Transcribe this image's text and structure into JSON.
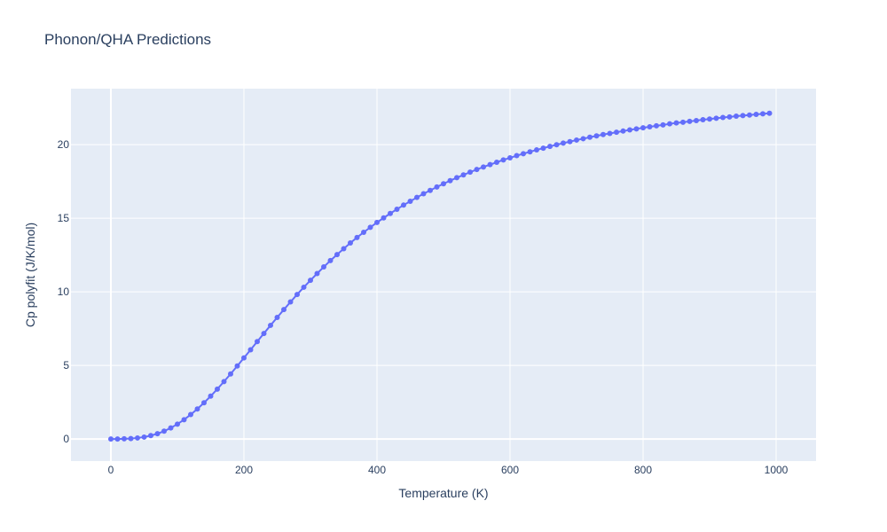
{
  "chart_data": {
    "type": "scatter",
    "title": "Phonon/QHA Predictions",
    "xlabel": "Temperature (K)",
    "ylabel": "Cp polyfit (J/K/mol)",
    "xlim": [
      -60,
      1060
    ],
    "ylim": [
      -1.5,
      23.8
    ],
    "x_ticks": [
      0,
      200,
      400,
      600,
      800,
      1000
    ],
    "y_ticks": [
      0,
      5,
      10,
      15,
      20
    ],
    "grid": true,
    "legend": "none",
    "colors": {
      "plot_bg": "#e5ecf6",
      "grid": "#ffffff",
      "series": "#636efa",
      "text": "#2a3f5f"
    },
    "series": [
      {
        "mode": "lines+markers",
        "x": [
          0,
          10,
          20,
          30,
          40,
          50,
          60,
          70,
          80,
          90,
          100,
          110,
          120,
          130,
          140,
          150,
          160,
          170,
          180,
          190,
          200,
          210,
          220,
          230,
          240,
          250,
          260,
          270,
          280,
          290,
          300,
          310,
          320,
          330,
          340,
          350,
          360,
          370,
          380,
          390,
          400,
          410,
          420,
          430,
          440,
          450,
          460,
          470,
          480,
          490,
          500,
          510,
          520,
          530,
          540,
          550,
          560,
          570,
          580,
          590,
          600,
          610,
          620,
          630,
          640,
          650,
          660,
          670,
          680,
          690,
          700,
          710,
          720,
          730,
          740,
          750,
          760,
          770,
          780,
          790,
          800,
          810,
          820,
          830,
          840,
          850,
          860,
          870,
          880,
          890,
          900,
          910,
          920,
          930,
          940,
          950,
          960,
          970,
          980,
          990
        ],
        "y": [
          0.0,
          0.0,
          0.01,
          0.03,
          0.07,
          0.13,
          0.23,
          0.36,
          0.53,
          0.75,
          1.01,
          1.31,
          1.66,
          2.04,
          2.46,
          2.91,
          3.39,
          3.9,
          4.42,
          4.96,
          5.51,
          6.06,
          6.62,
          7.17,
          7.72,
          8.26,
          8.79,
          9.31,
          9.82,
          10.31,
          10.78,
          11.24,
          11.69,
          12.12,
          12.53,
          12.93,
          13.32,
          13.69,
          14.04,
          14.38,
          14.71,
          15.02,
          15.32,
          15.61,
          15.89,
          16.15,
          16.41,
          16.66,
          16.89,
          17.12,
          17.34,
          17.55,
          17.75,
          17.94,
          18.13,
          18.31,
          18.48,
          18.64,
          18.8,
          18.96,
          19.1,
          19.25,
          19.38,
          19.51,
          19.64,
          19.76,
          19.88,
          19.99,
          20.1,
          20.2,
          20.31,
          20.4,
          20.5,
          20.59,
          20.68,
          20.76,
          20.84,
          20.92,
          21.0,
          21.07,
          21.14,
          21.21,
          21.28,
          21.34,
          21.41,
          21.47,
          21.52,
          21.58,
          21.63,
          21.69,
          21.74,
          21.79,
          21.84,
          21.88,
          21.93,
          21.97,
          22.01,
          22.05,
          22.09,
          22.13
        ]
      }
    ]
  }
}
